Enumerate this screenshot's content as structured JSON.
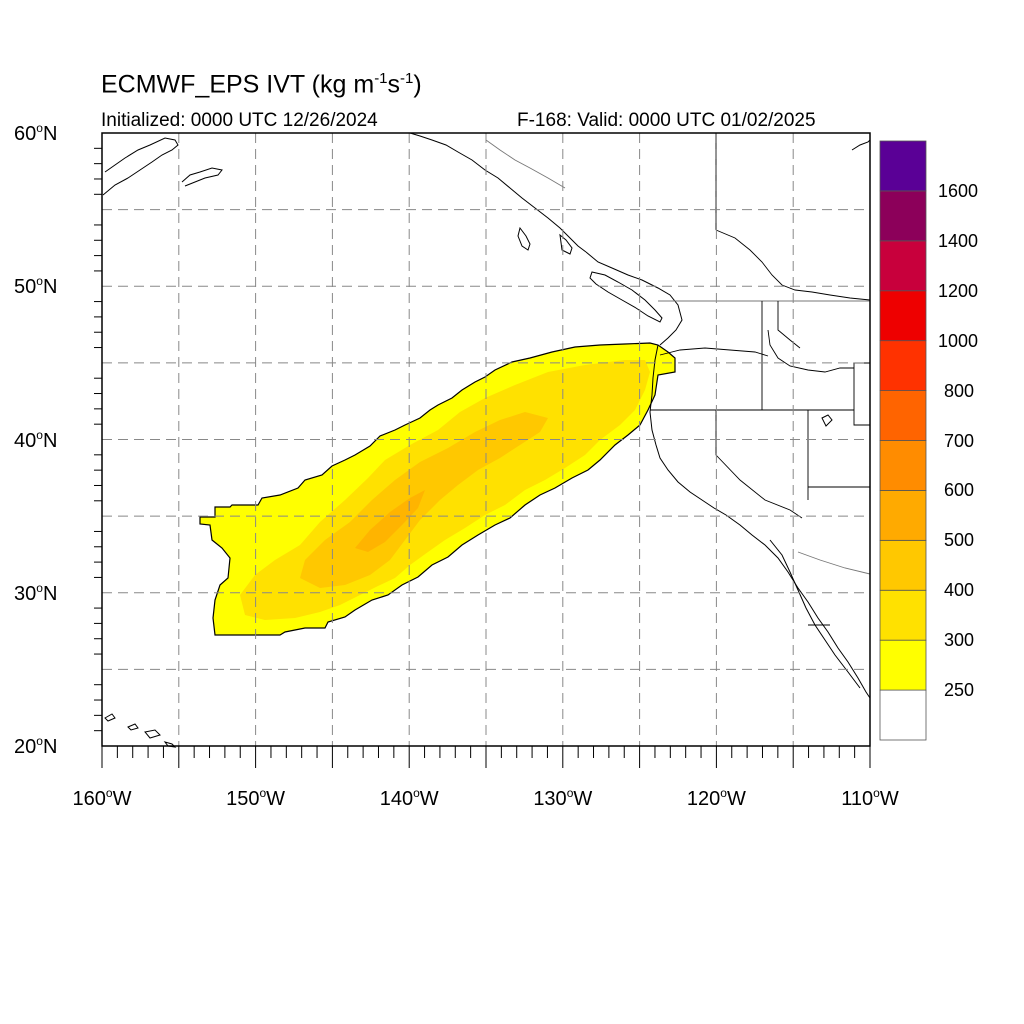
{
  "header": {
    "title_main": "ECMWF_EPS IVT (kg m",
    "title_exp1": "-1",
    "title_mid": "s",
    "title_exp2": "-1",
    "title_end": ")",
    "initialized": "Initialized: 0000 UTC 12/26/2024",
    "valid": "F-168: Valid: 0000 UTC 01/02/2025"
  },
  "axes": {
    "lat_labels": [
      {
        "value": 60,
        "num": "60",
        "hemi": "N"
      },
      {
        "value": 50,
        "num": "50",
        "hemi": "N"
      },
      {
        "value": 40,
        "num": "40",
        "hemi": "N"
      },
      {
        "value": 30,
        "num": "30",
        "hemi": "N"
      },
      {
        "value": 20,
        "num": "20",
        "hemi": "N"
      }
    ],
    "lon_labels": [
      {
        "value": -160,
        "num": "160",
        "hemi": "W"
      },
      {
        "value": -150,
        "num": "150",
        "hemi": "W"
      },
      {
        "value": -140,
        "num": "140",
        "hemi": "W"
      },
      {
        "value": -130,
        "num": "130",
        "hemi": "W"
      },
      {
        "value": -120,
        "num": "120",
        "hemi": "W"
      },
      {
        "value": -110,
        "num": "110",
        "hemi": "W"
      }
    ],
    "lat_range": [
      20,
      60
    ],
    "lon_range": [
      -160,
      -110
    ],
    "gridline_interval_deg": 5,
    "gridline_style": "dashed gray"
  },
  "colorbar": {
    "labels": [
      "250",
      "300",
      "400",
      "500",
      "600",
      "700",
      "800",
      "1000",
      "1200",
      "1400",
      "1600"
    ],
    "colors": [
      "#ffffff",
      "#ffff00",
      "#ffe100",
      "#ffc800",
      "#ffaa00",
      "#ff8c00",
      "#ff6400",
      "#ff3200",
      "#ee0000",
      "#c8003c",
      "#8c005a",
      "#5a0096"
    ]
  },
  "ivt_plume": {
    "description_colors": {
      "outer": "#ffff00",
      "middle": "#ffe100",
      "core": "#ffc800"
    }
  }
}
